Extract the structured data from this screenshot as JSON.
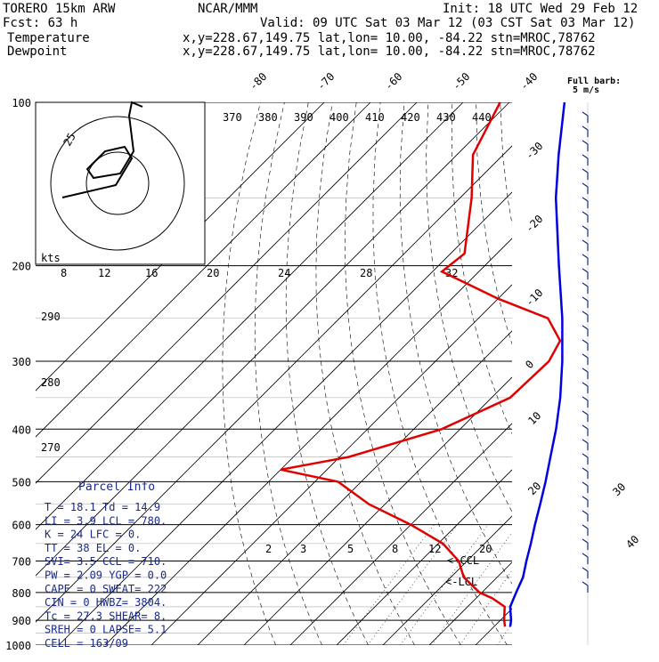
{
  "header": {
    "model": "TORERO  15km ARW",
    "org": "NCAR/MMM",
    "init": "Init: 18 UTC Wed 29 Feb 12",
    "fcst": "Fcst:   63 h",
    "valid": "Valid: 09 UTC Sat 03 Mar 12 (03 CST Sat 03 Mar 12)"
  },
  "legend": [
    {
      "name": "Temperature",
      "color": "#0000e0",
      "loc": "x,y=228.67,149.75   lat,lon= 10.00, -84.22  stn=MROC,78762"
    },
    {
      "name": "Dewpoint",
      "color": "#e00000",
      "loc": "x,y=228.67,149.75   lat,lon= 10.00, -84.22  stn=MROC,78762"
    }
  ],
  "barb_key": {
    "line1": "Full barb:",
    "line2": "5 m/s"
  },
  "hodograph": {
    "ring_label": "25",
    "unit": "kts"
  },
  "parcel_info": {
    "title": "Parcel Info",
    "rows": [
      "T  =   18.1 Td =  14.9",
      "LI =    3.9 LCL =  780.",
      "K  =     24 LFC =    0.",
      "TT =     38 EL  =    0.",
      "SVI=    3.5 CCL =  710.",
      "PW =   2.09 YGP =   0.0",
      "CAPE =    0 SWEAT=  222",
      "CIN  =    0 HWBZ= 3804.",
      "Tc   = 27.3 SHEAR=   8.",
      "SREH =    0 LAPSE=  5.1",
      "CELL = 163/09"
    ]
  },
  "chart_data": {
    "type": "line",
    "title": "",
    "ylabel": "",
    "y_scale": "log",
    "y_ticks": [
      100,
      200,
      300,
      400,
      500,
      600,
      700,
      800,
      900,
      1000
    ],
    "ylim": [
      100,
      1000
    ],
    "isotherm_labels_top": [
      -80,
      -70,
      -60,
      -50,
      -40
    ],
    "isotherm_labels_right": [
      -30,
      -20,
      -10,
      0,
      10,
      20,
      30,
      40
    ],
    "theta_e_labels": [
      370,
      380,
      390,
      400,
      410,
      420,
      430,
      440
    ],
    "mixing_ratio_labels_upper": [
      8,
      12,
      16,
      20,
      24,
      28,
      32
    ],
    "mixing_ratio_labels_lower": [
      2,
      3,
      5,
      8,
      12,
      20
    ],
    "dry_adiabat_labels": [
      290,
      280,
      270
    ],
    "annotations": [
      "<-CCL",
      "<-LCL"
    ],
    "series": [
      {
        "name": "Temperature",
        "color": "#0000e0",
        "points": [
          [
            925,
            23.5
          ],
          [
            900,
            22.3
          ],
          [
            850,
            19.2
          ],
          [
            800,
            17.4
          ],
          [
            750,
            15.6
          ],
          [
            700,
            12.8
          ],
          [
            650,
            10.0
          ],
          [
            600,
            6.8
          ],
          [
            550,
            3.5
          ],
          [
            500,
            -0.2
          ],
          [
            450,
            -4.5
          ],
          [
            400,
            -9.3
          ],
          [
            350,
            -15.2
          ],
          [
            300,
            -22.6
          ],
          [
            250,
            -31.9
          ],
          [
            200,
            -44.0
          ],
          [
            150,
            -59.3
          ],
          [
            125,
            -68.0
          ],
          [
            100,
            -78.1
          ]
        ]
      },
      {
        "name": "Dewpoint",
        "color": "#e00000",
        "points": [
          [
            925,
            22.4
          ],
          [
            900,
            20.8
          ],
          [
            850,
            18.0
          ],
          [
            820,
            13.5
          ],
          [
            800,
            9.5
          ],
          [
            750,
            2.8
          ],
          [
            700,
            -1.8
          ],
          [
            650,
            -9.0
          ],
          [
            600,
            -20.0
          ],
          [
            550,
            -33.5
          ],
          [
            500,
            -45.0
          ],
          [
            475,
            -60.0
          ],
          [
            450,
            -48.0
          ],
          [
            400,
            -34.0
          ],
          [
            350,
            -26.0
          ],
          [
            300,
            -25.5
          ],
          [
            275,
            -27.5
          ],
          [
            250,
            -35.0
          ],
          [
            230,
            -50.0
          ],
          [
            205,
            -68.0
          ],
          [
            190,
            -67.0
          ],
          [
            150,
            -77.5
          ],
          [
            125,
            -86.5
          ],
          [
            100,
            -92.0
          ]
        ]
      }
    ]
  }
}
